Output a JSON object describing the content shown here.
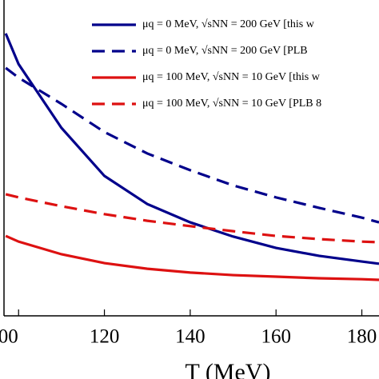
{
  "chart_data": {
    "type": "line",
    "xlabel": "T (MeV)",
    "x": [
      97,
      100,
      110,
      120,
      130,
      140,
      150,
      160,
      170,
      180,
      184
    ],
    "xlim": [
      96.6,
      184
    ],
    "xticks": [
      {
        "value": 100,
        "label": "00"
      },
      120,
      140,
      160,
      180
    ],
    "ylim": [
      0,
      100
    ],
    "series": [
      {
        "name": "μq = 0 MeV,   √sNN = 200 GeV [this w",
        "color": "#00008b",
        "dash": false,
        "values": [
          89.4,
          79.7,
          59.5,
          44.3,
          35.4,
          29.6,
          25.1,
          21.5,
          19.0,
          17.2,
          16.5
        ]
      },
      {
        "name": "μq = 0 MeV,   √sNN = 200 GeV [PLB",
        "color": "#00008b",
        "dash": true,
        "values": [
          78.5,
          75.4,
          67.1,
          58.2,
          51.4,
          46.1,
          41.3,
          37.5,
          34.2,
          31.1,
          29.6
        ]
      },
      {
        "name": "μq = 100 MeV, √sNN = 10 GeV [this w",
        "color": "#dd1111",
        "dash": false,
        "values": [
          25.3,
          23.5,
          19.5,
          16.7,
          14.9,
          13.7,
          12.9,
          12.4,
          11.9,
          11.6,
          11.4
        ]
      },
      {
        "name": "μq = 100 MeV, √sNN = 10 GeV [PLB 8",
        "color": "#dd1111",
        "dash": true,
        "values": [
          38.5,
          37.5,
          34.7,
          32.2,
          30.1,
          28.4,
          26.8,
          25.3,
          24.3,
          23.5,
          23.3
        ]
      }
    ]
  }
}
